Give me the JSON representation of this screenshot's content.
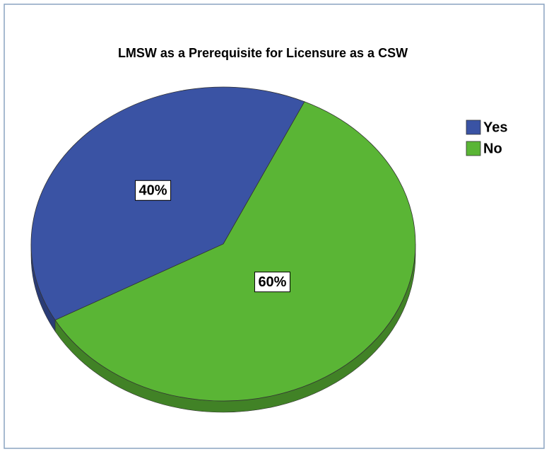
{
  "chart_data": {
    "type": "pie",
    "title": "LMSW as a Prerequisite for Licensure as a CSW",
    "categories": [
      "Yes",
      "No"
    ],
    "values": [
      40,
      60
    ],
    "value_labels": [
      "40%",
      "60%"
    ],
    "colors": [
      "#3a53a4",
      "#5ab535"
    ],
    "legend": "right"
  }
}
